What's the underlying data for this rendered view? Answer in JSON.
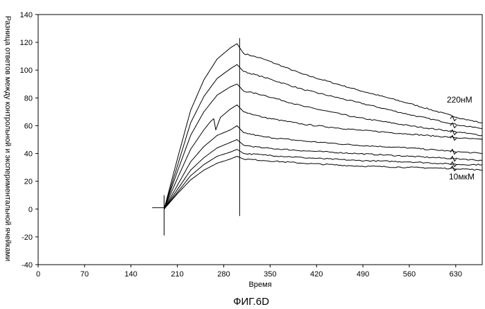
{
  "chart_data": {
    "type": "line",
    "title": "",
    "caption": "ФИГ.6D",
    "xlabel": "Время",
    "ylabel": "Разница ответов между контрольной и экспериментальной ячейками",
    "xlim": [
      0,
      670
    ],
    "ylim": [
      -40,
      140
    ],
    "xticks": [
      0,
      70,
      140,
      210,
      280,
      350,
      420,
      490,
      560,
      630
    ],
    "yticks": [
      -40,
      -20,
      0,
      20,
      40,
      60,
      80,
      100,
      120,
      140
    ],
    "grid": false,
    "annotations": [
      {
        "text": "220нМ",
        "x": 630,
        "y": 66
      },
      {
        "text": "10мкМ",
        "x": 630,
        "y": 23
      }
    ],
    "series": [
      {
        "x": [
          190,
          210,
          230,
          250,
          270,
          290,
          300,
          310,
          340,
          400,
          480,
          560,
          640,
          670
        ],
        "y": [
          0,
          36,
          71,
          93,
          108,
          116,
          119,
          112,
          108,
          97,
          86,
          76,
          65,
          62
        ]
      },
      {
        "x": [
          190,
          210,
          230,
          250,
          270,
          290,
          300,
          310,
          340,
          400,
          480,
          560,
          640,
          670
        ],
        "y": [
          0,
          31,
          62,
          81,
          94,
          101,
          104,
          99,
          95,
          86,
          77,
          68,
          60,
          58
        ]
      },
      {
        "x": [
          190,
          210,
          230,
          250,
          270,
          290,
          300,
          310,
          340,
          400,
          480,
          560,
          640,
          670
        ],
        "y": [
          0,
          27,
          53,
          70,
          82,
          88,
          90,
          85,
          82,
          74,
          66,
          60,
          55,
          53
        ]
      },
      {
        "x": [
          190,
          210,
          230,
          250,
          260,
          265,
          268,
          275,
          290,
          300,
          310,
          340,
          400,
          480,
          560,
          640,
          670
        ],
        "y": [
          0,
          22,
          43,
          57,
          63,
          65,
          57,
          66,
          72,
          75,
          70,
          66,
          61,
          57,
          54,
          51,
          50
        ]
      },
      {
        "x": [
          190,
          210,
          230,
          250,
          270,
          290,
          300,
          310,
          340,
          400,
          480,
          560,
          640,
          670
        ],
        "y": [
          0,
          17,
          34,
          45,
          53,
          57,
          60,
          55,
          52,
          49,
          46,
          44,
          41,
          40
        ]
      },
      {
        "x": [
          190,
          210,
          230,
          250,
          270,
          290,
          300,
          310,
          340,
          400,
          480,
          560,
          640,
          670
        ],
        "y": [
          0,
          14,
          28,
          37,
          44,
          48,
          50,
          46,
          44,
          42,
          40,
          38,
          36,
          35
        ]
      },
      {
        "x": [
          190,
          210,
          230,
          250,
          270,
          290,
          300,
          310,
          340,
          400,
          480,
          560,
          640,
          670
        ],
        "y": [
          0,
          12,
          24,
          32,
          38,
          41,
          43,
          40,
          39,
          37,
          35,
          34,
          32,
          32
        ]
      },
      {
        "x": [
          190,
          210,
          230,
          250,
          270,
          290,
          300,
          310,
          340,
          400,
          480,
          560,
          640,
          670
        ],
        "y": [
          0,
          11,
          21,
          28,
          33,
          36,
          38,
          36,
          35,
          33,
          31,
          30,
          29,
          28
        ]
      }
    ]
  }
}
